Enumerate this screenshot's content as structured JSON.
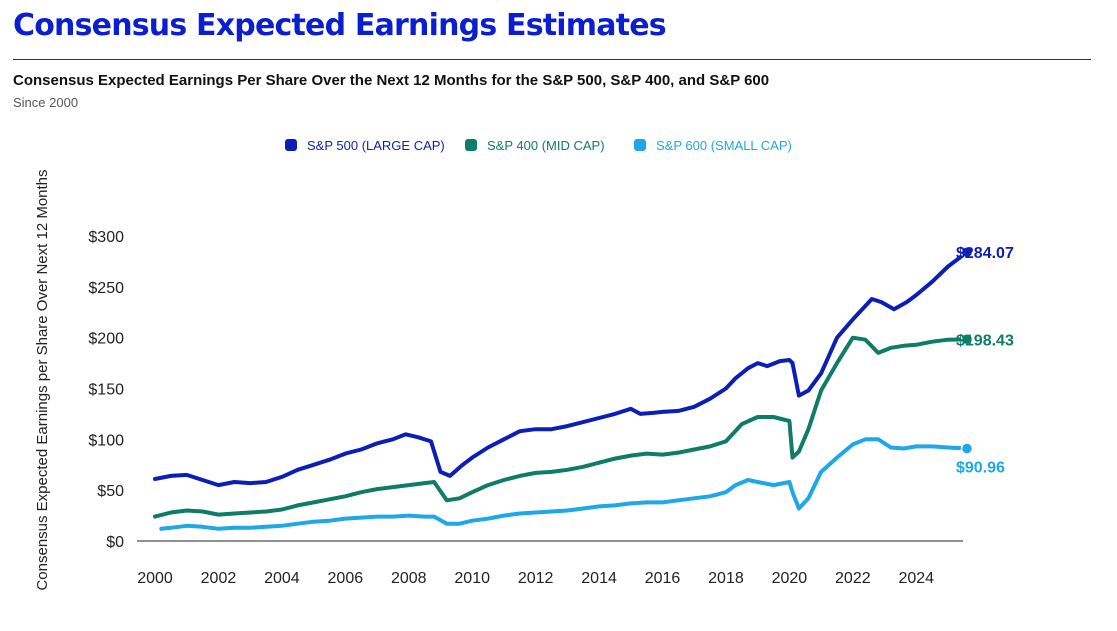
{
  "header": {
    "title": "Consensus Expected Earnings Estimates",
    "subtitle": "Consensus Expected Earnings Per Share Over the Next 12 Months for the S&P 500, S&P 400, and S&P 600",
    "since": "Since 2000"
  },
  "chart_data": {
    "type": "line",
    "ylabel": "Consensus Expected Earnings per Share Over Next 12 Months",
    "xlim": [
      2000,
      2025.6
    ],
    "ylim": [
      0,
      300
    ],
    "x_ticks": [
      "2000",
      "2002",
      "2004",
      "2006",
      "2008",
      "2010",
      "2012",
      "2014",
      "2016",
      "2018",
      "2020",
      "2022",
      "2024"
    ],
    "y_ticks": [
      "$0",
      "$50",
      "$100",
      "$150",
      "$200",
      "$250",
      "$300"
    ],
    "grid": false,
    "legend_position": "top-center",
    "series": [
      {
        "name": "S&P 500 (LARGE CAP)",
        "color": "#0b1fb8",
        "end_label": "$284.07",
        "x": [
          2000,
          2000.5,
          2001,
          2001.5,
          2002,
          2002.5,
          2003,
          2003.5,
          2004,
          2004.5,
          2005,
          2005.5,
          2006,
          2006.5,
          2007,
          2007.5,
          2007.9,
          2008.3,
          2008.7,
          2009,
          2009.3,
          2009.7,
          2010,
          2010.5,
          2011,
          2011.5,
          2012,
          2012.5,
          2013,
          2013.5,
          2014,
          2014.5,
          2015,
          2015.3,
          2015.7,
          2016,
          2016.5,
          2017,
          2017.5,
          2018,
          2018.3,
          2018.7,
          2019,
          2019.3,
          2019.7,
          2020,
          2020.1,
          2020.3,
          2020.6,
          2021,
          2021.5,
          2022,
          2022.3,
          2022.6,
          2022.9,
          2023.3,
          2023.7,
          2024,
          2024.5,
          2025,
          2025.6
        ],
        "y": [
          61,
          64,
          65,
          60,
          55,
          58,
          57,
          58,
          63,
          70,
          75,
          80,
          86,
          90,
          96,
          100,
          105,
          102,
          98,
          68,
          64,
          75,
          82,
          92,
          100,
          108,
          110,
          110,
          113,
          117,
          121,
          125,
          130,
          125,
          126,
          127,
          128,
          132,
          140,
          150,
          160,
          170,
          175,
          172,
          177,
          178,
          175,
          143,
          148,
          165,
          200,
          218,
          228,
          238,
          235,
          228,
          235,
          242,
          255,
          270,
          284.07
        ]
      },
      {
        "name": "S&P 400 (MID CAP)",
        "color": "#0e7c66",
        "end_label": "$198.43",
        "x": [
          2000,
          2000.5,
          2001,
          2001.5,
          2002,
          2002.5,
          2003,
          2003.5,
          2004,
          2004.5,
          2005,
          2005.5,
          2006,
          2006.5,
          2007,
          2007.5,
          2008,
          2008.5,
          2008.8,
          2009.2,
          2009.6,
          2010,
          2010.5,
          2011,
          2011.5,
          2012,
          2012.5,
          2013,
          2013.5,
          2014,
          2014.5,
          2015,
          2015.5,
          2016,
          2016.5,
          2017,
          2017.5,
          2018,
          2018.5,
          2019,
          2019.5,
          2020,
          2020.1,
          2020.3,
          2020.6,
          2021,
          2021.5,
          2022,
          2022.4,
          2022.8,
          2023.2,
          2023.6,
          2024,
          2024.5,
          2025,
          2025.6
        ],
        "y": [
          24,
          28,
          30,
          29,
          26,
          27,
          28,
          29,
          31,
          35,
          38,
          41,
          44,
          48,
          51,
          53,
          55,
          57,
          58,
          40,
          42,
          48,
          55,
          60,
          64,
          67,
          68,
          70,
          73,
          77,
          81,
          84,
          86,
          85,
          87,
          90,
          93,
          98,
          115,
          122,
          122,
          118,
          82,
          88,
          110,
          148,
          175,
          200,
          198,
          185,
          190,
          192,
          193,
          196,
          198,
          198.43
        ]
      },
      {
        "name": "S&P 600 (SMALL CAP)",
        "color": "#1ea8e8",
        "end_label": "$90.96",
        "x": [
          2000.2,
          2000.5,
          2001,
          2001.5,
          2002,
          2002.5,
          2003,
          2003.5,
          2004,
          2004.5,
          2005,
          2005.5,
          2006,
          2006.5,
          2007,
          2007.5,
          2008,
          2008.5,
          2008.8,
          2009.2,
          2009.6,
          2010,
          2010.5,
          2011,
          2011.5,
          2012,
          2012.5,
          2013,
          2013.5,
          2014,
          2014.5,
          2015,
          2015.5,
          2016,
          2016.5,
          2017,
          2017.5,
          2018,
          2018.3,
          2018.7,
          2019,
          2019.5,
          2020,
          2020.1,
          2020.3,
          2020.6,
          2021,
          2021.5,
          2022,
          2022.4,
          2022.8,
          2023.2,
          2023.6,
          2024,
          2024.5,
          2025,
          2025.6
        ],
        "y": [
          12,
          13,
          15,
          14,
          12,
          13,
          13,
          14,
          15,
          17,
          19,
          20,
          22,
          23,
          24,
          24,
          25,
          24,
          24,
          17,
          17,
          20,
          22,
          25,
          27,
          28,
          29,
          30,
          32,
          34,
          35,
          37,
          38,
          38,
          40,
          42,
          44,
          48,
          55,
          60,
          58,
          55,
          58,
          48,
          32,
          42,
          68,
          82,
          95,
          100,
          100,
          92,
          91,
          93,
          93,
          92,
          90.96
        ]
      }
    ]
  }
}
